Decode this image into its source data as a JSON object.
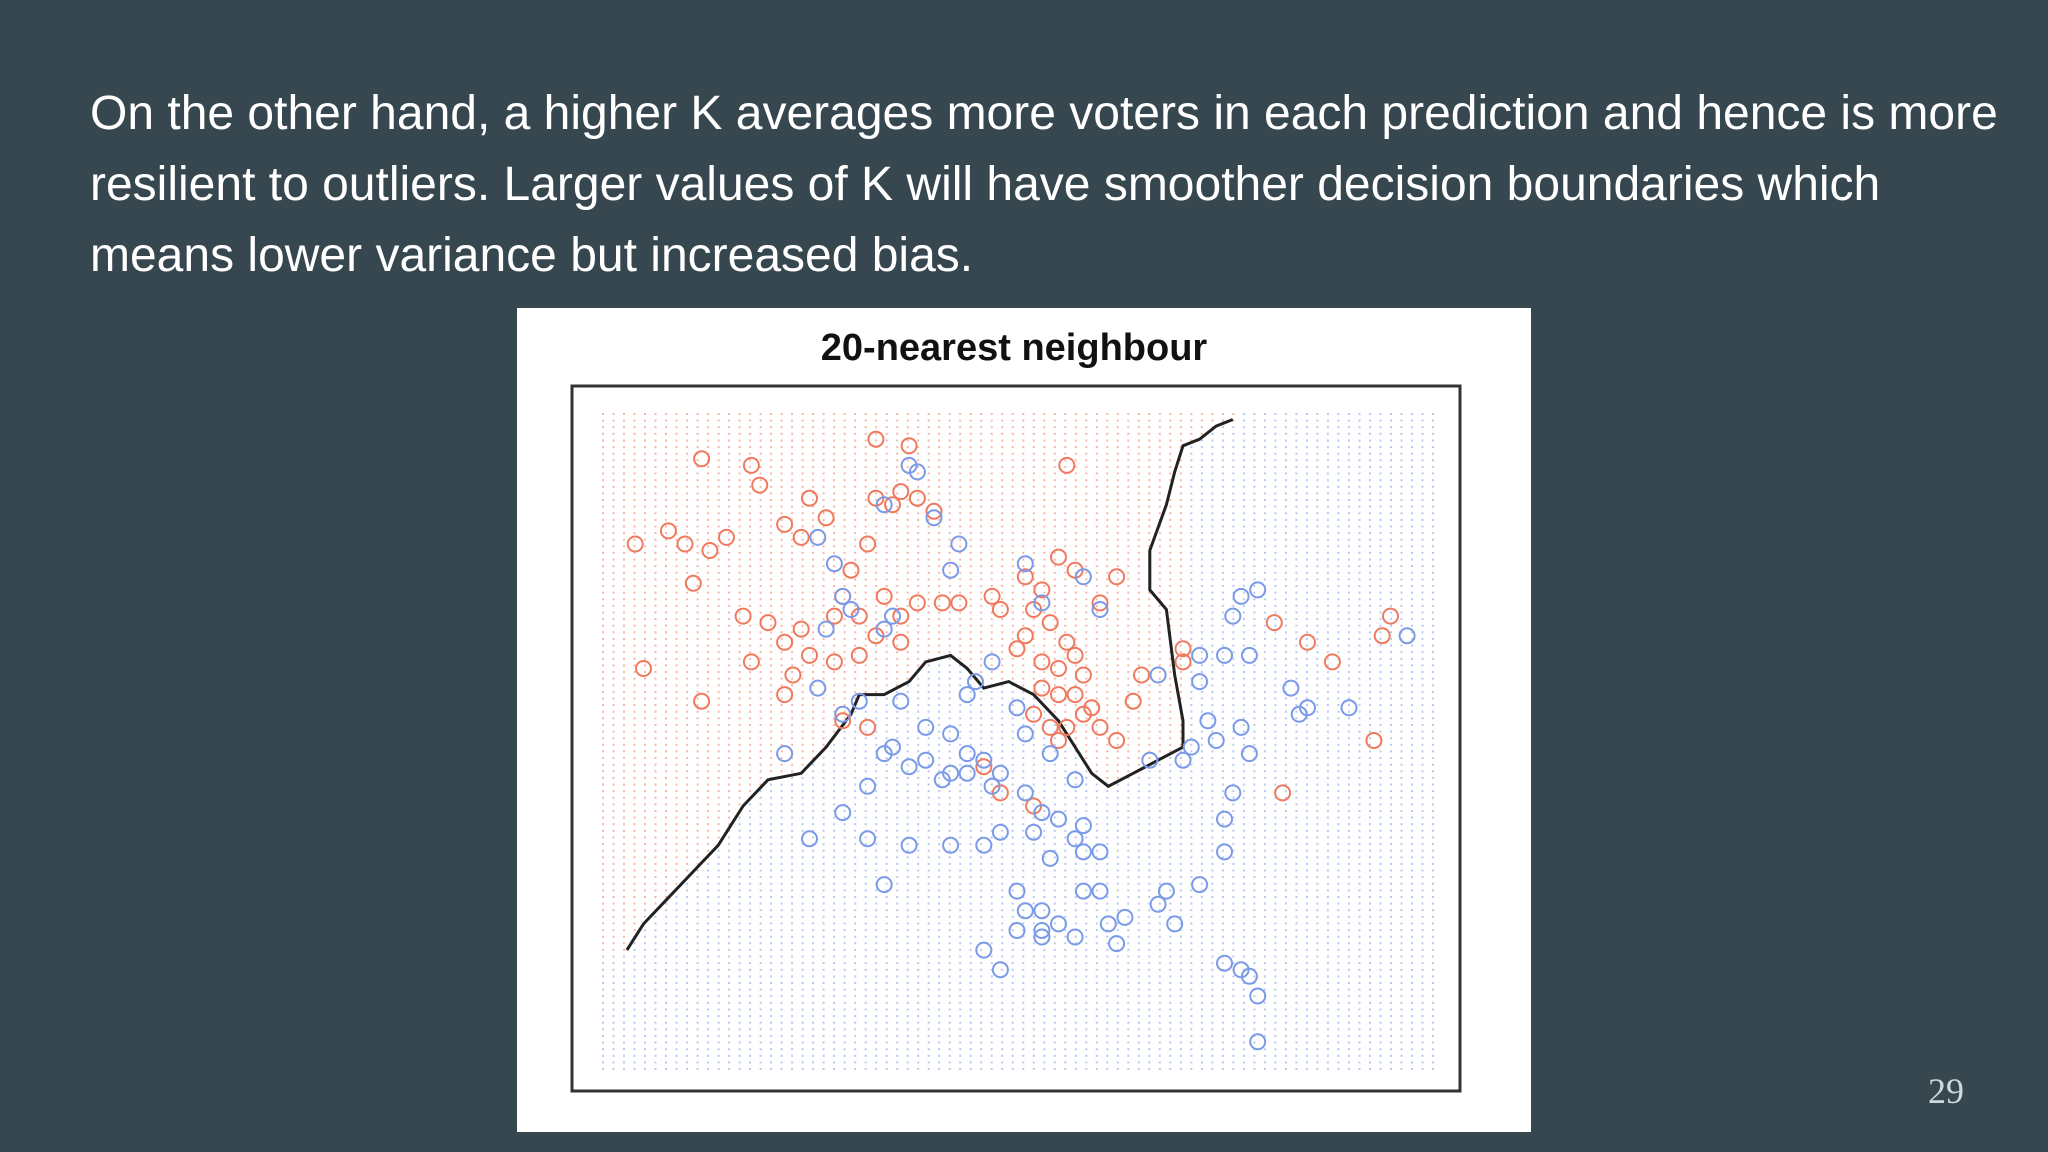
{
  "slide": {
    "body_text": "On the other hand, a higher K averages more voters in each prediction and hence is more resilient to outliers. Larger values of K will have smoother decision boundaries which means lower variance but increased bias.",
    "page_number": "29"
  },
  "figure": {
    "title": "20-nearest neighbour",
    "colors": {
      "class_a": "#f07a5e",
      "class_b": "#7b9ae8",
      "boundary": "#222222",
      "frame": "#333333"
    },
    "boundary": [
      [
        0.03,
        0.82
      ],
      [
        0.05,
        0.78
      ],
      [
        0.08,
        0.74
      ],
      [
        0.11,
        0.7
      ],
      [
        0.14,
        0.66
      ],
      [
        0.17,
        0.6
      ],
      [
        0.2,
        0.56
      ],
      [
        0.24,
        0.55
      ],
      [
        0.27,
        0.51
      ],
      [
        0.3,
        0.46
      ],
      [
        0.31,
        0.43
      ],
      [
        0.34,
        0.43
      ],
      [
        0.37,
        0.41
      ],
      [
        0.39,
        0.38
      ],
      [
        0.42,
        0.37
      ],
      [
        0.44,
        0.39
      ],
      [
        0.46,
        0.42
      ],
      [
        0.49,
        0.41
      ],
      [
        0.52,
        0.43
      ],
      [
        0.55,
        0.47
      ],
      [
        0.57,
        0.51
      ],
      [
        0.59,
        0.55
      ],
      [
        0.61,
        0.57
      ],
      [
        0.64,
        0.55
      ],
      [
        0.67,
        0.53
      ],
      [
        0.7,
        0.51
      ],
      [
        0.7,
        0.47
      ],
      [
        0.69,
        0.4
      ],
      [
        0.68,
        0.3
      ],
      [
        0.66,
        0.27
      ],
      [
        0.66,
        0.21
      ],
      [
        0.68,
        0.14
      ],
      [
        0.69,
        0.09
      ],
      [
        0.7,
        0.05
      ],
      [
        0.72,
        0.04
      ],
      [
        0.74,
        0.02
      ],
      [
        0.76,
        0.01
      ]
    ],
    "points_a": [
      [
        0.12,
        0.07
      ],
      [
        0.18,
        0.08
      ],
      [
        0.33,
        0.04
      ],
      [
        0.37,
        0.05
      ],
      [
        0.19,
        0.11
      ],
      [
        0.25,
        0.13
      ],
      [
        0.27,
        0.16
      ],
      [
        0.04,
        0.2
      ],
      [
        0.08,
        0.18
      ],
      [
        0.1,
        0.2
      ],
      [
        0.13,
        0.21
      ],
      [
        0.15,
        0.19
      ],
      [
        0.22,
        0.17
      ],
      [
        0.24,
        0.19
      ],
      [
        0.38,
        0.13
      ],
      [
        0.4,
        0.15
      ],
      [
        0.33,
        0.13
      ],
      [
        0.36,
        0.12
      ],
      [
        0.35,
        0.14
      ],
      [
        0.32,
        0.2
      ],
      [
        0.11,
        0.26
      ],
      [
        0.3,
        0.24
      ],
      [
        0.29,
        0.28
      ],
      [
        0.31,
        0.31
      ],
      [
        0.28,
        0.31
      ],
      [
        0.34,
        0.28
      ],
      [
        0.36,
        0.31
      ],
      [
        0.38,
        0.29
      ],
      [
        0.41,
        0.29
      ],
      [
        0.43,
        0.29
      ],
      [
        0.47,
        0.28
      ],
      [
        0.48,
        0.3
      ],
      [
        0.51,
        0.25
      ],
      [
        0.53,
        0.27
      ],
      [
        0.55,
        0.22
      ],
      [
        0.57,
        0.24
      ],
      [
        0.52,
        0.3
      ],
      [
        0.54,
        0.32
      ],
      [
        0.56,
        0.35
      ],
      [
        0.57,
        0.37
      ],
      [
        0.51,
        0.34
      ],
      [
        0.5,
        0.36
      ],
      [
        0.53,
        0.38
      ],
      [
        0.55,
        0.39
      ],
      [
        0.58,
        0.4
      ],
      [
        0.53,
        0.42
      ],
      [
        0.55,
        0.43
      ],
      [
        0.57,
        0.43
      ],
      [
        0.52,
        0.46
      ],
      [
        0.54,
        0.48
      ],
      [
        0.56,
        0.48
      ],
      [
        0.58,
        0.46
      ],
      [
        0.59,
        0.45
      ],
      [
        0.6,
        0.48
      ],
      [
        0.62,
        0.5
      ],
      [
        0.64,
        0.44
      ],
      [
        0.65,
        0.4
      ],
      [
        0.7,
        0.38
      ],
      [
        0.7,
        0.36
      ],
      [
        0.2,
        0.32
      ],
      [
        0.22,
        0.35
      ],
      [
        0.18,
        0.38
      ],
      [
        0.17,
        0.31
      ],
      [
        0.23,
        0.4
      ],
      [
        0.25,
        0.37
      ],
      [
        0.28,
        0.38
      ],
      [
        0.31,
        0.37
      ],
      [
        0.33,
        0.34
      ],
      [
        0.36,
        0.35
      ],
      [
        0.12,
        0.44
      ],
      [
        0.22,
        0.43
      ],
      [
        0.29,
        0.47
      ],
      [
        0.32,
        0.48
      ],
      [
        0.05,
        0.39
      ],
      [
        0.46,
        0.54
      ],
      [
        0.48,
        0.58
      ],
      [
        0.52,
        0.6
      ],
      [
        0.55,
        0.5
      ],
      [
        0.81,
        0.32
      ],
      [
        0.85,
        0.35
      ],
      [
        0.88,
        0.38
      ],
      [
        0.93,
        0.5
      ],
      [
        0.82,
        0.58
      ],
      [
        0.95,
        0.31
      ],
      [
        0.94,
        0.34
      ],
      [
        0.6,
        0.29
      ],
      [
        0.62,
        0.25
      ],
      [
        0.24,
        0.33
      ],
      [
        0.56,
        0.08
      ]
    ],
    "points_b": [
      [
        0.37,
        0.08
      ],
      [
        0.38,
        0.09
      ],
      [
        0.4,
        0.16
      ],
      [
        0.43,
        0.2
      ],
      [
        0.42,
        0.24
      ],
      [
        0.28,
        0.23
      ],
      [
        0.29,
        0.28
      ],
      [
        0.35,
        0.31
      ],
      [
        0.34,
        0.33
      ],
      [
        0.51,
        0.23
      ],
      [
        0.53,
        0.29
      ],
      [
        0.58,
        0.25
      ],
      [
        0.6,
        0.3
      ],
      [
        0.77,
        0.28
      ],
      [
        0.79,
        0.27
      ],
      [
        0.72,
        0.37
      ],
      [
        0.72,
        0.41
      ],
      [
        0.75,
        0.37
      ],
      [
        0.78,
        0.37
      ],
      [
        0.83,
        0.42
      ],
      [
        0.85,
        0.45
      ],
      [
        0.77,
        0.48
      ],
      [
        0.78,
        0.52
      ],
      [
        0.73,
        0.47
      ],
      [
        0.71,
        0.51
      ],
      [
        0.67,
        0.4
      ],
      [
        0.39,
        0.48
      ],
      [
        0.35,
        0.51
      ],
      [
        0.34,
        0.52
      ],
      [
        0.37,
        0.54
      ],
      [
        0.39,
        0.53
      ],
      [
        0.41,
        0.56
      ],
      [
        0.42,
        0.55
      ],
      [
        0.44,
        0.52
      ],
      [
        0.46,
        0.53
      ],
      [
        0.47,
        0.57
      ],
      [
        0.48,
        0.55
      ],
      [
        0.51,
        0.58
      ],
      [
        0.53,
        0.61
      ],
      [
        0.52,
        0.64
      ],
      [
        0.55,
        0.62
      ],
      [
        0.57,
        0.65
      ],
      [
        0.58,
        0.67
      ],
      [
        0.6,
        0.67
      ],
      [
        0.58,
        0.63
      ],
      [
        0.54,
        0.52
      ],
      [
        0.51,
        0.49
      ],
      [
        0.5,
        0.45
      ],
      [
        0.44,
        0.43
      ],
      [
        0.45,
        0.41
      ],
      [
        0.47,
        0.38
      ],
      [
        0.44,
        0.55
      ],
      [
        0.29,
        0.46
      ],
      [
        0.32,
        0.57
      ],
      [
        0.25,
        0.65
      ],
      [
        0.32,
        0.65
      ],
      [
        0.34,
        0.72
      ],
      [
        0.37,
        0.66
      ],
      [
        0.42,
        0.66
      ],
      [
        0.46,
        0.66
      ],
      [
        0.5,
        0.73
      ],
      [
        0.51,
        0.76
      ],
      [
        0.53,
        0.76
      ],
      [
        0.55,
        0.78
      ],
      [
        0.53,
        0.79
      ],
      [
        0.57,
        0.8
      ],
      [
        0.61,
        0.78
      ],
      [
        0.63,
        0.77
      ],
      [
        0.58,
        0.73
      ],
      [
        0.6,
        0.73
      ],
      [
        0.62,
        0.81
      ],
      [
        0.67,
        0.75
      ],
      [
        0.68,
        0.73
      ],
      [
        0.69,
        0.78
      ],
      [
        0.72,
        0.72
      ],
      [
        0.75,
        0.67
      ],
      [
        0.75,
        0.62
      ],
      [
        0.75,
        0.84
      ],
      [
        0.77,
        0.85
      ],
      [
        0.78,
        0.86
      ],
      [
        0.79,
        0.89
      ],
      [
        0.66,
        0.53
      ],
      [
        0.7,
        0.53
      ],
      [
        0.48,
        0.85
      ],
      [
        0.46,
        0.82
      ],
      [
        0.5,
        0.79
      ],
      [
        0.53,
        0.8
      ],
      [
        0.79,
        0.96
      ],
      [
        0.76,
        0.58
      ],
      [
        0.26,
        0.19
      ],
      [
        0.34,
        0.14
      ],
      [
        0.3,
        0.3
      ],
      [
        0.27,
        0.33
      ],
      [
        0.26,
        0.42
      ],
      [
        0.31,
        0.44
      ],
      [
        0.29,
        0.61
      ],
      [
        0.22,
        0.52
      ],
      [
        0.42,
        0.49
      ],
      [
        0.36,
        0.44
      ],
      [
        0.48,
        0.64
      ],
      [
        0.57,
        0.56
      ],
      [
        0.74,
        0.5
      ],
      [
        0.97,
        0.34
      ],
      [
        0.9,
        0.45
      ],
      [
        0.84,
        0.46
      ],
      [
        0.76,
        0.31
      ],
      [
        0.54,
        0.68
      ]
    ]
  }
}
